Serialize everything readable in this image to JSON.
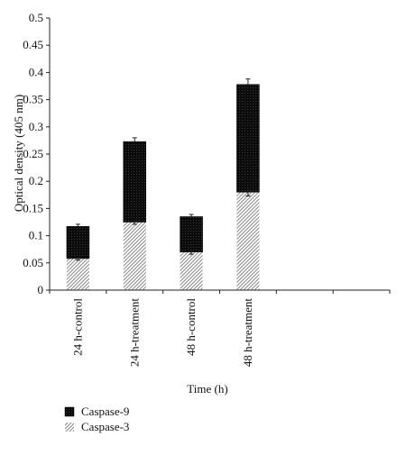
{
  "chart_data": {
    "type": "bar",
    "stacked": true,
    "title": "",
    "xlabel": "Time (h)",
    "ylabel": "Optical density (405 nm)",
    "ylim": [
      0,
      0.5
    ],
    "yticks": [
      "0",
      "0.05",
      "0.1",
      "0.15",
      "0.2",
      "0.25",
      "0.3",
      "0.35",
      "0.4",
      "0.45",
      "0.5"
    ],
    "categories": [
      "24 h-control",
      "24 h-treatment",
      "48 h-control",
      "48 h-treatment"
    ],
    "slots": 6,
    "series": [
      {
        "name": "Caspase-3",
        "values": [
          0.058,
          0.125,
          0.07,
          0.18
        ],
        "error": [
          0.003,
          0.004,
          0.004,
          0.007
        ],
        "pattern": "diagonal-hatch",
        "color": "#9a9a9a"
      },
      {
        "name": "Caspase-9",
        "values": [
          0.059,
          0.148,
          0.065,
          0.198
        ],
        "error": [
          0.004,
          0.007,
          0.004,
          0.01
        ],
        "pattern": "dotted-black",
        "color": "#111111"
      }
    ],
    "legend": {
      "position": "bottom-left",
      "items": [
        "Caspase-9",
        "Caspase-3"
      ]
    },
    "grid": false
  }
}
